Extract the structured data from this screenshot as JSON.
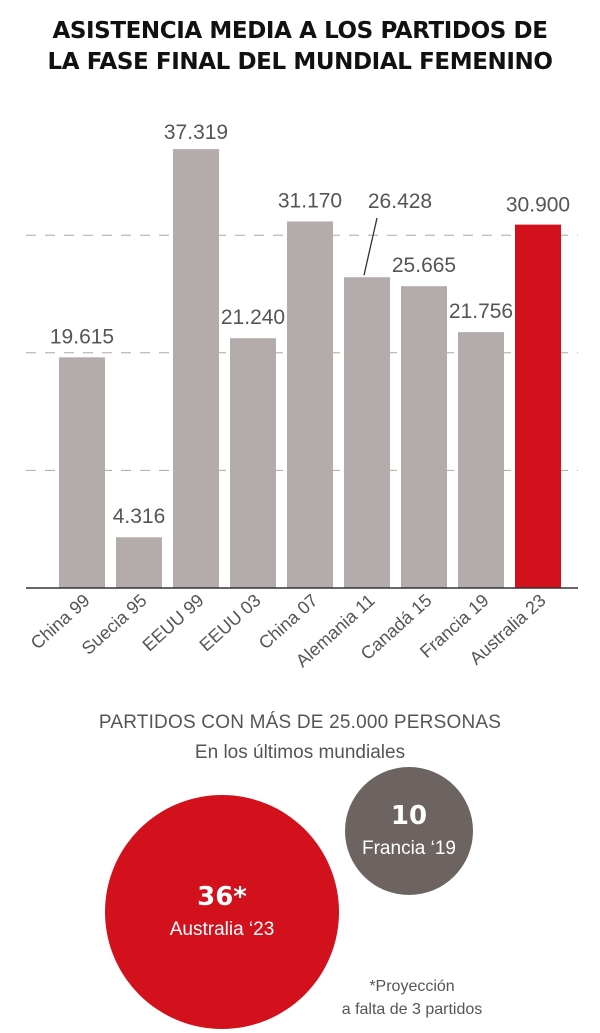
{
  "title_lines": [
    "ASISTENCIA MEDIA A LOS PARTIDOS DE",
    "LA FASE FINAL DEL MUNDIAL FEMENINO"
  ],
  "chart_data": {
    "type": "bar",
    "categories": [
      "China 99",
      "Suecia 95",
      "EEUU 99",
      "EEUU 03",
      "China 07",
      "Alemania 11",
      "Canadá 15",
      "Francia 19",
      "Australia 23"
    ],
    "values": [
      19615,
      4316,
      37319,
      21240,
      31170,
      26428,
      25665,
      21756,
      30900
    ],
    "value_labels": [
      "19.615",
      "4.316",
      "37.319",
      "21.240",
      "31.170",
      "26.428",
      "25.665",
      "21.756",
      "30.900"
    ],
    "highlight_index": 8,
    "ylim": [
      0,
      40000
    ],
    "gridlines": [
      10000,
      20000,
      30000
    ],
    "colors": {
      "bar": "#b4acaa",
      "highlight": "#d2111c",
      "label": "#555555",
      "grid": "#b0a8a6",
      "axis": "#333333"
    }
  },
  "section": {
    "title": "PARTIDOS CON MÁS DE 25.000 PERSONAS",
    "subtitle": "En los últimos mundiales"
  },
  "bubbles": [
    {
      "value": "36*",
      "label": "Australia ‘23",
      "color": "#d2111c",
      "count": 36
    },
    {
      "value": "10",
      "label": "Francia ‘19",
      "color": "#6d6461",
      "count": 10
    }
  ],
  "note": {
    "line1": "*Proyección",
    "line2": "a falta de 3 partidos"
  }
}
